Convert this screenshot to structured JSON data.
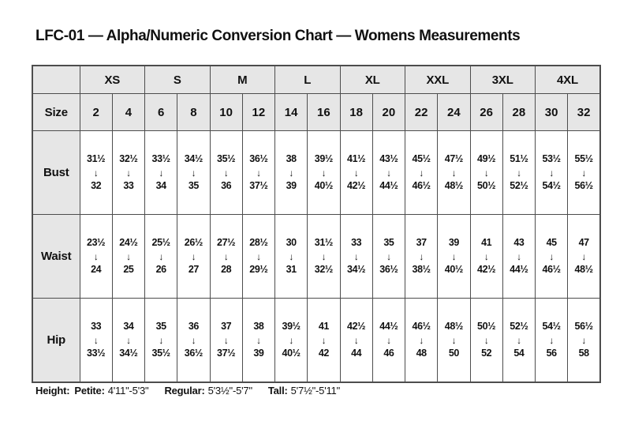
{
  "title": "LFC-01 — Alpha/Numeric Conversion Chart — Womens Measurements",
  "chart_data": {
    "type": "table",
    "title": "LFC-01 — Alpha/Numeric Conversion Chart — Womens Measurements",
    "corner_label": "",
    "alpha_sizes": [
      "XS",
      "S",
      "M",
      "L",
      "XL",
      "XXL",
      "3XL",
      "4XL"
    ],
    "size_row_label": "Size",
    "numeric_sizes": [
      "2",
      "4",
      "6",
      "8",
      "10",
      "12",
      "14",
      "16",
      "18",
      "20",
      "22",
      "24",
      "26",
      "28",
      "30",
      "32"
    ],
    "arrow_glyph": "↓",
    "measurement_rows": [
      {
        "label": "Bust",
        "ranges": [
          {
            "from": "31½",
            "to": "32"
          },
          {
            "from": "32½",
            "to": "33"
          },
          {
            "from": "33½",
            "to": "34"
          },
          {
            "from": "34½",
            "to": "35"
          },
          {
            "from": "35½",
            "to": "36"
          },
          {
            "from": "36½",
            "to": "37½"
          },
          {
            "from": "38",
            "to": "39"
          },
          {
            "from": "39½",
            "to": "40½"
          },
          {
            "from": "41½",
            "to": "42½"
          },
          {
            "from": "43½",
            "to": "44½"
          },
          {
            "from": "45½",
            "to": "46½"
          },
          {
            "from": "47½",
            "to": "48½"
          },
          {
            "from": "49½",
            "to": "50½"
          },
          {
            "from": "51½",
            "to": "52½"
          },
          {
            "from": "53½",
            "to": "54½"
          },
          {
            "from": "55½",
            "to": "56½"
          }
        ]
      },
      {
        "label": "Waist",
        "ranges": [
          {
            "from": "23½",
            "to": "24"
          },
          {
            "from": "24½",
            "to": "25"
          },
          {
            "from": "25½",
            "to": "26"
          },
          {
            "from": "26½",
            "to": "27"
          },
          {
            "from": "27½",
            "to": "28"
          },
          {
            "from": "28½",
            "to": "29½"
          },
          {
            "from": "30",
            "to": "31"
          },
          {
            "from": "31½",
            "to": "32½"
          },
          {
            "from": "33",
            "to": "34½"
          },
          {
            "from": "35",
            "to": "36½"
          },
          {
            "from": "37",
            "to": "38½"
          },
          {
            "from": "39",
            "to": "40½"
          },
          {
            "from": "41",
            "to": "42½"
          },
          {
            "from": "43",
            "to": "44½"
          },
          {
            "from": "45",
            "to": "46½"
          },
          {
            "from": "47",
            "to": "48½"
          }
        ]
      },
      {
        "label": "Hip",
        "ranges": [
          {
            "from": "33",
            "to": "33½"
          },
          {
            "from": "34",
            "to": "34½"
          },
          {
            "from": "35",
            "to": "35½"
          },
          {
            "from": "36",
            "to": "36½"
          },
          {
            "from": "37",
            "to": "37½"
          },
          {
            "from": "38",
            "to": "39"
          },
          {
            "from": "39½",
            "to": "40½"
          },
          {
            "from": "41",
            "to": "42"
          },
          {
            "from": "42½",
            "to": "44"
          },
          {
            "from": "44½",
            "to": "46"
          },
          {
            "from": "46½",
            "to": "48"
          },
          {
            "from": "48½",
            "to": "50"
          },
          {
            "from": "50½",
            "to": "52"
          },
          {
            "from": "52½",
            "to": "54"
          },
          {
            "from": "54½",
            "to": "56"
          },
          {
            "from": "56½",
            "to": "58"
          }
        ]
      }
    ]
  },
  "footer": {
    "height_label": "Height:",
    "segments": [
      {
        "label": "Petite:",
        "value": "4'11\"-5'3\""
      },
      {
        "label": "Regular:",
        "value": "5'3½\"-5'7\""
      },
      {
        "label": "Tall:",
        "value": "5'7½\"-5'11\""
      }
    ]
  },
  "colors": {
    "shaded_bg": "#e6e6e6",
    "border": "#4d4d4d",
    "text": "#111111",
    "background": "#ffffff"
  }
}
